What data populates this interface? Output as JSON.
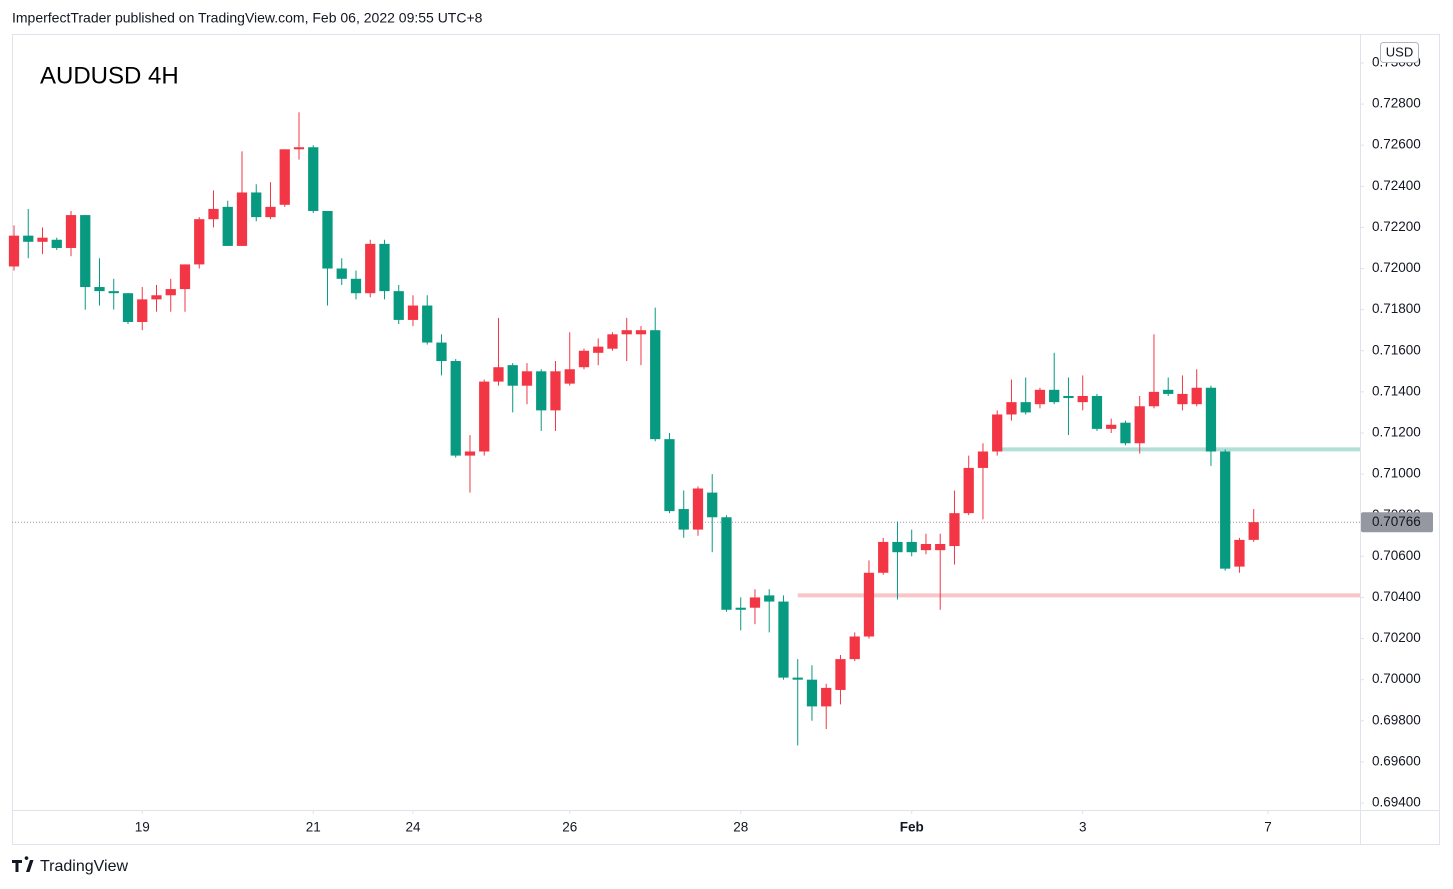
{
  "header": {
    "text": "ImperfectTrader published on TradingView.com, Feb 06, 2022 09:55 UTC+8"
  },
  "footer": {
    "brand": "TradingView"
  },
  "chart_data": {
    "type": "candlestick",
    "title": "AUDUSD 4H",
    "currency": "USD",
    "up_color": "#f23645",
    "down_color": "#089981",
    "grid": false,
    "xlim": [
      -0.14,
      94.46
    ],
    "xticks": [
      {
        "value": 9,
        "label": "19"
      },
      {
        "value": 21,
        "label": "21"
      },
      {
        "value": 28,
        "label": "24"
      },
      {
        "value": 39,
        "label": "26"
      },
      {
        "value": 51,
        "label": "28"
      },
      {
        "value": 63,
        "label": "Feb"
      },
      {
        "value": 75,
        "label": "3"
      },
      {
        "value": 88,
        "label": "7"
      }
    ],
    "ylim": [
      0.69366,
      0.73136
    ],
    "yticks": [
      {
        "value": 0.694,
        "label": "0.69400"
      },
      {
        "value": 0.696,
        "label": "0.69600"
      },
      {
        "value": 0.698,
        "label": "0.69800"
      },
      {
        "value": 0.7,
        "label": "0.70000"
      },
      {
        "value": 0.702,
        "label": "0.70200"
      },
      {
        "value": 0.704,
        "label": "0.70400"
      },
      {
        "value": 0.706,
        "label": "0.70600"
      },
      {
        "value": 0.708,
        "label": "0.70800"
      },
      {
        "value": 0.71,
        "label": "0.71000"
      },
      {
        "value": 0.712,
        "label": "0.71200"
      },
      {
        "value": 0.714,
        "label": "0.71400"
      },
      {
        "value": 0.716,
        "label": "0.71600"
      },
      {
        "value": 0.718,
        "label": "0.71800"
      },
      {
        "value": 0.72,
        "label": "0.72000"
      },
      {
        "value": 0.722,
        "label": "0.72200"
      },
      {
        "value": 0.724,
        "label": "0.72400"
      },
      {
        "value": 0.726,
        "label": "0.72600"
      },
      {
        "value": 0.728,
        "label": "0.72800"
      },
      {
        "value": 0.73,
        "label": "0.73000"
      }
    ],
    "last_price": {
      "value": 0.70766,
      "label": "0.70766",
      "color": "#9598a1"
    },
    "levels": [
      {
        "value": 0.7112,
        "color": "#b2dfd8",
        "from": 69
      },
      {
        "value": 0.7041,
        "color": "#f8c5c8",
        "from": 55
      }
    ],
    "candles": [
      [
        0.7201,
        0.7221,
        0.7199,
        0.7216
      ],
      [
        0.7216,
        0.7229,
        0.7205,
        0.7213
      ],
      [
        0.7213,
        0.722,
        0.7207,
        0.7215
      ],
      [
        0.7214,
        0.7215,
        0.7209,
        0.721
      ],
      [
        0.721,
        0.7228,
        0.7206,
        0.7226
      ],
      [
        0.7226,
        0.7226,
        0.718,
        0.7191
      ],
      [
        0.7191,
        0.7205,
        0.7182,
        0.7189
      ],
      [
        0.7189,
        0.7195,
        0.718,
        0.7188
      ],
      [
        0.7188,
        0.7188,
        0.7173,
        0.7174
      ],
      [
        0.7174,
        0.7191,
        0.717,
        0.7185
      ],
      [
        0.7185,
        0.7192,
        0.7179,
        0.7187
      ],
      [
        0.7187,
        0.7195,
        0.7179,
        0.719
      ],
      [
        0.719,
        0.7202,
        0.7179,
        0.7202
      ],
      [
        0.7202,
        0.7225,
        0.72,
        0.7224
      ],
      [
        0.7224,
        0.7238,
        0.722,
        0.7229
      ],
      [
        0.723,
        0.7233,
        0.7211,
        0.7211
      ],
      [
        0.7211,
        0.7257,
        0.7211,
        0.7237
      ],
      [
        0.7237,
        0.7241,
        0.7223,
        0.7225
      ],
      [
        0.7225,
        0.7242,
        0.7224,
        0.723
      ],
      [
        0.7231,
        0.7258,
        0.723,
        0.7258
      ],
      [
        0.7258,
        0.7276,
        0.7253,
        0.7259
      ],
      [
        0.7259,
        0.726,
        0.7227,
        0.7228
      ],
      [
        0.7228,
        0.7228,
        0.7182,
        0.72
      ],
      [
        0.72,
        0.7205,
        0.7192,
        0.7195
      ],
      [
        0.7195,
        0.7199,
        0.7185,
        0.7188
      ],
      [
        0.7188,
        0.7214,
        0.7186,
        0.7212
      ],
      [
        0.7212,
        0.7214,
        0.7185,
        0.7189
      ],
      [
        0.7189,
        0.7192,
        0.7173,
        0.7175
      ],
      [
        0.7175,
        0.7187,
        0.7172,
        0.7182
      ],
      [
        0.7182,
        0.7187,
        0.7163,
        0.7164
      ],
      [
        0.7164,
        0.7168,
        0.7148,
        0.7155
      ],
      [
        0.7155,
        0.7156,
        0.7108,
        0.7109
      ],
      [
        0.7109,
        0.7119,
        0.7091,
        0.7111
      ],
      [
        0.7111,
        0.7146,
        0.7109,
        0.7145
      ],
      [
        0.7145,
        0.7176,
        0.7143,
        0.7152
      ],
      [
        0.7153,
        0.7154,
        0.713,
        0.7143
      ],
      [
        0.7143,
        0.7154,
        0.7134,
        0.715
      ],
      [
        0.715,
        0.7151,
        0.7121,
        0.7131
      ],
      [
        0.7131,
        0.7155,
        0.7121,
        0.715
      ],
      [
        0.7144,
        0.7169,
        0.7143,
        0.7151
      ],
      [
        0.7152,
        0.7161,
        0.7151,
        0.716
      ],
      [
        0.7159,
        0.7166,
        0.7153,
        0.7162
      ],
      [
        0.7161,
        0.7169,
        0.716,
        0.7168
      ],
      [
        0.7168,
        0.7176,
        0.7155,
        0.717
      ],
      [
        0.7168,
        0.7172,
        0.7153,
        0.717
      ],
      [
        0.717,
        0.7181,
        0.7116,
        0.7117
      ],
      [
        0.7117,
        0.712,
        0.7081,
        0.7082
      ],
      [
        0.7083,
        0.7092,
        0.7069,
        0.7073
      ],
      [
        0.7073,
        0.7094,
        0.707,
        0.7093
      ],
      [
        0.7091,
        0.71,
        0.7062,
        0.7079
      ],
      [
        0.7079,
        0.708,
        0.7033,
        0.7034
      ],
      [
        0.7035,
        0.704,
        0.7024,
        0.7034
      ],
      [
        0.7035,
        0.7044,
        0.7027,
        0.704
      ],
      [
        0.7041,
        0.7044,
        0.7023,
        0.7038
      ],
      [
        0.7038,
        0.7041,
        0.7,
        0.7001
      ],
      [
        0.7001,
        0.701,
        0.6968,
        0.7
      ],
      [
        0.7,
        0.7007,
        0.698,
        0.6987
      ],
      [
        0.6987,
        0.6998,
        0.6976,
        0.6996
      ],
      [
        0.6995,
        0.7012,
        0.6988,
        0.701
      ],
      [
        0.701,
        0.7023,
        0.7009,
        0.7021
      ],
      [
        0.7021,
        0.7058,
        0.702,
        0.7052
      ],
      [
        0.7052,
        0.7069,
        0.7051,
        0.7067
      ],
      [
        0.7067,
        0.7077,
        0.7039,
        0.7062
      ],
      [
        0.7067,
        0.7073,
        0.706,
        0.7062
      ],
      [
        0.7063,
        0.7071,
        0.7061,
        0.7066
      ],
      [
        0.7063,
        0.7071,
        0.7034,
        0.7066
      ],
      [
        0.7065,
        0.7092,
        0.7056,
        0.7081
      ],
      [
        0.7081,
        0.7109,
        0.708,
        0.7103
      ],
      [
        0.7103,
        0.7115,
        0.7078,
        0.7111
      ],
      [
        0.7111,
        0.7131,
        0.7109,
        0.7129
      ],
      [
        0.7129,
        0.7146,
        0.7126,
        0.7135
      ],
      [
        0.7135,
        0.7147,
        0.7129,
        0.713
      ],
      [
        0.7134,
        0.7142,
        0.7132,
        0.7141
      ],
      [
        0.7141,
        0.7159,
        0.7134,
        0.7135
      ],
      [
        0.7138,
        0.7147,
        0.7119,
        0.7137
      ],
      [
        0.7135,
        0.7148,
        0.7131,
        0.7138
      ],
      [
        0.7138,
        0.7139,
        0.7121,
        0.7122
      ],
      [
        0.7122,
        0.7127,
        0.712,
        0.7124
      ],
      [
        0.7125,
        0.7126,
        0.7114,
        0.7115
      ],
      [
        0.7115,
        0.7138,
        0.711,
        0.7133
      ],
      [
        0.7133,
        0.7168,
        0.7132,
        0.714
      ],
      [
        0.7141,
        0.7147,
        0.7138,
        0.7139
      ],
      [
        0.7134,
        0.7148,
        0.7131,
        0.7139
      ],
      [
        0.7134,
        0.7151,
        0.7133,
        0.7142
      ],
      [
        0.7142,
        0.7143,
        0.7104,
        0.7111
      ],
      [
        0.7111,
        0.7112,
        0.7053,
        0.7054
      ],
      [
        0.7055,
        0.7069,
        0.7052,
        0.7068
      ],
      [
        0.7068,
        0.7083,
        0.7067,
        0.70766
      ]
    ]
  }
}
